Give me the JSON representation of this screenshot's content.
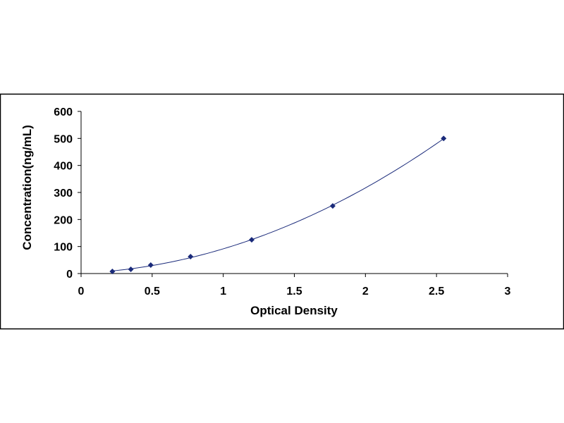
{
  "chart_data": {
    "type": "scatter",
    "title": "",
    "xlabel": "Optical Density",
    "ylabel": "Concentration(ng/mL)",
    "xlim": [
      0,
      3
    ],
    "ylim": [
      0,
      600
    ],
    "x_ticks": [
      "0",
      "0.5",
      "1",
      "1.5",
      "2",
      "2.5",
      "3"
    ],
    "y_ticks": [
      "0",
      "100",
      "200",
      "300",
      "400",
      "500",
      "600"
    ],
    "grid": false,
    "legend": "none",
    "trendline": "polynomial",
    "series": [
      {
        "x": [
          0.22,
          0.35,
          0.49,
          0.77,
          1.2,
          1.77,
          2.55
        ],
        "y": [
          7.8,
          15.6,
          31.2,
          62.5,
          125,
          250,
          500
        ],
        "marker": "diamond",
        "color": "#1a2a7a"
      }
    ],
    "line_color": "#1a2a7a"
  }
}
